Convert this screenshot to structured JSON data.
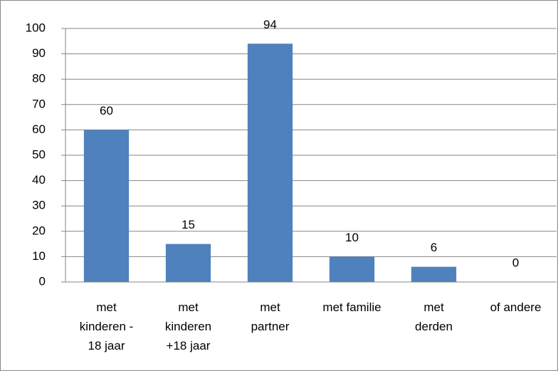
{
  "chart_data": {
    "type": "bar",
    "categories": [
      "met kinderen - 18 jaar",
      "met kinderen +18 jaar",
      "met partner",
      "met familie",
      "met derden",
      "of andere"
    ],
    "values": [
      60,
      15,
      94,
      10,
      6,
      0
    ],
    "color": "#4f81bd",
    "ylim": [
      0,
      100
    ],
    "yticks": [
      0,
      10,
      20,
      30,
      40,
      50,
      60,
      70,
      80,
      90,
      100
    ],
    "grid": true
  }
}
